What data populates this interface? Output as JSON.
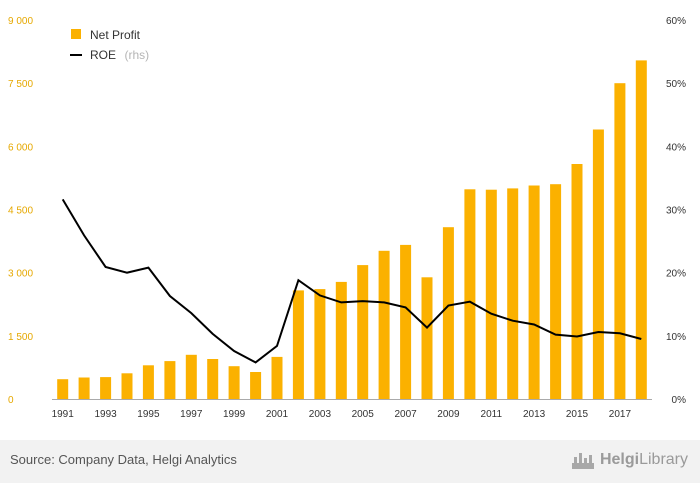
{
  "chart_data": {
    "type": "bar",
    "x": [
      1991,
      1992,
      1993,
      1994,
      1995,
      1996,
      1997,
      1998,
      1999,
      2000,
      2001,
      2002,
      2003,
      2004,
      2005,
      2006,
      2007,
      2008,
      2009,
      2010,
      2011,
      2012,
      2013,
      2014,
      2015,
      2016,
      2017,
      2018
    ],
    "x_tick_labels": [
      "1991",
      "1993",
      "1995",
      "1997",
      "1999",
      "2001",
      "2003",
      "2005",
      "2007",
      "2009",
      "2011",
      "2013",
      "2015",
      "2017"
    ],
    "series": [
      {
        "name": "Net Profit",
        "type": "bar",
        "axis": "left",
        "values": [
          470,
          510,
          520,
          610,
          800,
          900,
          1050,
          950,
          780,
          640,
          1000,
          2580,
          2610,
          2780,
          3180,
          3520,
          3660,
          2890,
          4080,
          4980,
          4970,
          5000,
          5070,
          5100,
          5580,
          6400,
          7500,
          8040
        ]
      },
      {
        "name": "ROE",
        "name_note": "(rhs)",
        "type": "line",
        "axis": "right",
        "values": [
          31.6,
          25.9,
          20.9,
          20.0,
          20.8,
          16.3,
          13.6,
          10.3,
          7.6,
          5.8,
          8.4,
          18.8,
          16.4,
          15.3,
          15.5,
          15.3,
          14.5,
          11.3,
          14.8,
          15.4,
          13.5,
          12.4,
          11.8,
          10.2,
          9.9,
          10.6,
          10.4,
          9.5
        ]
      }
    ],
    "left_axis": {
      "ylim": [
        0,
        9000
      ],
      "tick_labels": [
        "0",
        "1 500",
        "3 000",
        "4 500",
        "6 000",
        "7 500",
        "9 000"
      ]
    },
    "right_axis": {
      "ylim": [
        0,
        60
      ],
      "tick_labels": [
        "0%",
        "10%",
        "20%",
        "30%",
        "40%",
        "50%",
        "60%"
      ]
    },
    "grid": false,
    "legend_position": "top-left",
    "colors": {
      "bars": "#fbb100",
      "line": "#000000",
      "left_ticks": "#e6a800",
      "axis": "#aaaaaa"
    }
  },
  "footer": {
    "source": "Source: Company Data, Helgi Analytics",
    "logo_text_bold": "Helgi",
    "logo_text": "Library"
  }
}
